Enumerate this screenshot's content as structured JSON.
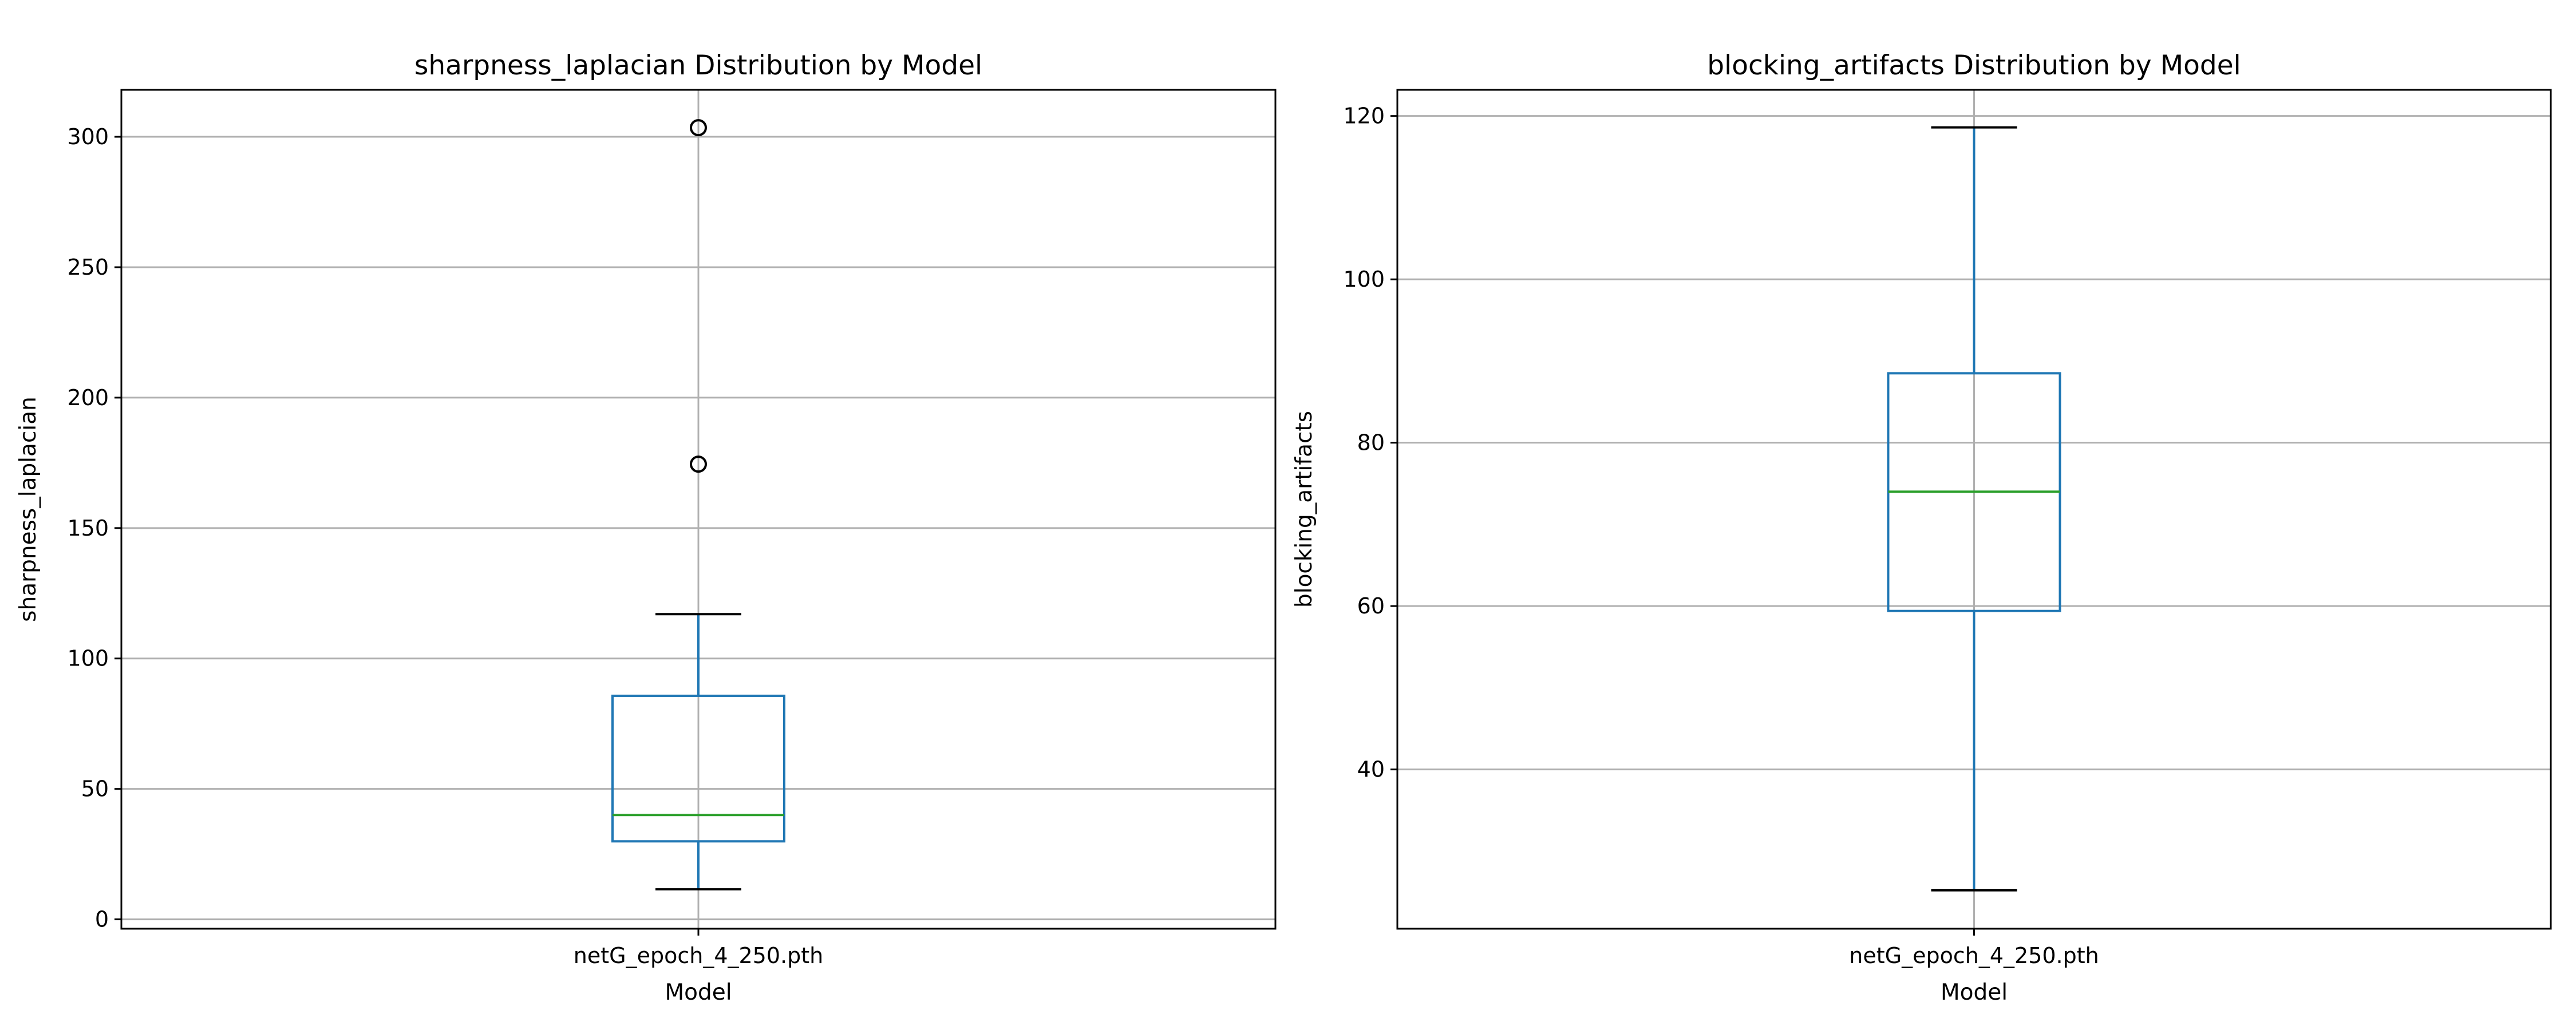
{
  "chart_data": [
    {
      "type": "box",
      "title": "sharpness_laplacian Distribution by Model",
      "xlabel": "Model",
      "ylabel": "sharpness_laplacian",
      "categories": [
        "netG_epoch_4_250.pth"
      ],
      "ylim": [
        -3.6,
        318.0
      ],
      "yticks": [
        0,
        50,
        100,
        150,
        200,
        250,
        300
      ],
      "grid": true,
      "boxes": [
        {
          "category": "netG_epoch_4_250.pth",
          "whisker_low": 11.5,
          "q1": 29.9,
          "median": 40.0,
          "q3": 85.7,
          "whisker_high": 117.0,
          "outliers": [
            174.5,
            303.5
          ]
        }
      ],
      "colors": {
        "box": "#1f77b4",
        "median": "#2ca02c",
        "whisker": "#1f77b4",
        "cap": "#000000",
        "grid": "#b0b0b0"
      }
    },
    {
      "type": "box",
      "title": "blocking_artifacts Distribution by Model",
      "xlabel": "Model",
      "ylabel": "blocking_artifacts",
      "categories": [
        "netG_epoch_4_250.pth"
      ],
      "ylim": [
        20.5,
        123.2
      ],
      "yticks": [
        40,
        60,
        80,
        100,
        120
      ],
      "grid": true,
      "boxes": [
        {
          "category": "netG_epoch_4_250.pth",
          "whisker_low": 25.2,
          "q1": 59.4,
          "median": 74.0,
          "q3": 88.5,
          "whisker_high": 118.6,
          "outliers": []
        }
      ],
      "colors": {
        "box": "#1f77b4",
        "median": "#2ca02c",
        "whisker": "#1f77b4",
        "cap": "#000000",
        "grid": "#b0b0b0"
      }
    }
  ]
}
